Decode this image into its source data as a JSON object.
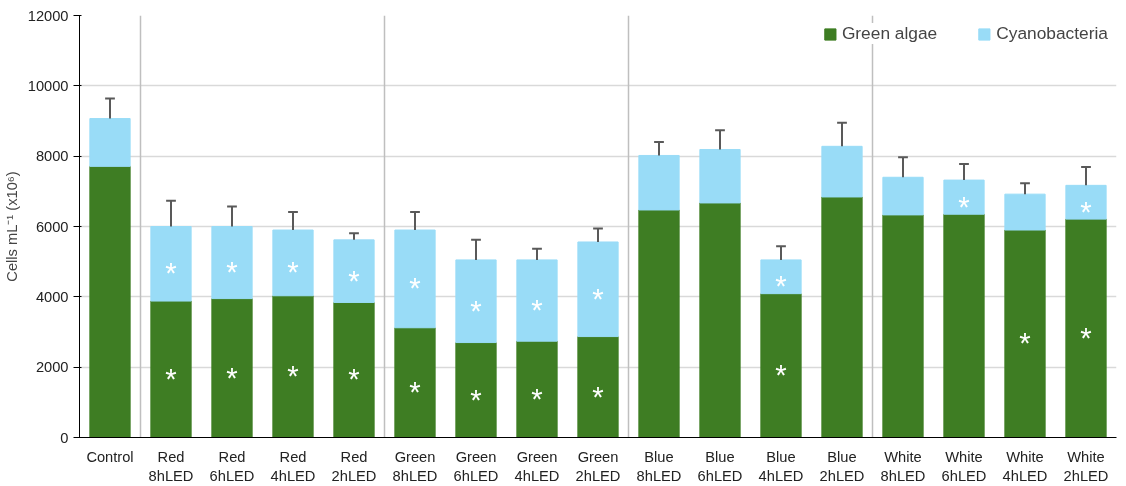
{
  "chart_data": {
    "type": "bar",
    "stacked": true,
    "ylabel": "Cells mL⁻¹ (x10⁶)",
    "categories": [
      "Control",
      "Red\n8hLED",
      "Red\n6hLED",
      "Red\n4hLED",
      "Red\n2hLED",
      "Green\n8hLED",
      "Green\n6hLED",
      "Green\n4hLED",
      "Green\n2hLED",
      "Blue\n8hLED",
      "Blue\n6hLED",
      "Blue\n4hLED",
      "Blue\n2hLED",
      "White\n8hLED",
      "White\n6hLED",
      "White\n4hLED",
      "White\n2hLED"
    ],
    "series": [
      {
        "name": "Green algae",
        "color": "#3e7d23",
        "values": [
          7710,
          3880,
          3950,
          4030,
          3840,
          3120,
          2700,
          2740,
          2870,
          6470,
          6670,
          4090,
          6840,
          6330,
          6350,
          5900,
          6210
        ],
        "value_labels": [
          null,
          "*",
          "*",
          "*",
          "*",
          "*",
          "*",
          "*",
          "*",
          null,
          null,
          "*",
          null,
          null,
          null,
          "*",
          "*"
        ]
      },
      {
        "name": "Cyanobacteria",
        "color": "#99dcf7",
        "values": [
          1360,
          2120,
          2050,
          1870,
          1780,
          2780,
          2350,
          2310,
          2690,
          1550,
          1520,
          960,
          1440,
          1070,
          970,
          1020,
          960
        ],
        "value_labels": [
          null,
          "*",
          "*",
          "*",
          "*",
          "*",
          "*",
          "*",
          "*",
          null,
          null,
          "*",
          null,
          null,
          "*",
          null,
          "*"
        ],
        "errors": [
          [
            9070,
            9640
          ],
          [
            6000,
            6730
          ],
          [
            6000,
            6570
          ],
          [
            5900,
            6410
          ],
          [
            5620,
            5810
          ],
          [
            5900,
            6410
          ],
          [
            5050,
            5620
          ],
          [
            5050,
            5370
          ],
          [
            5560,
            5940
          ],
          [
            8020,
            8400
          ],
          [
            8190,
            8740
          ],
          [
            5050,
            5440
          ],
          [
            8280,
            8950
          ],
          [
            7400,
            7970
          ],
          [
            7320,
            7780
          ],
          [
            6920,
            7230
          ],
          [
            7170,
            7690
          ]
        ]
      }
    ],
    "ylim": [
      0,
      12000
    ],
    "yticks": [
      0,
      2000,
      4000,
      6000,
      8000,
      10000,
      12000
    ],
    "grid": "y",
    "legend": "top right"
  }
}
